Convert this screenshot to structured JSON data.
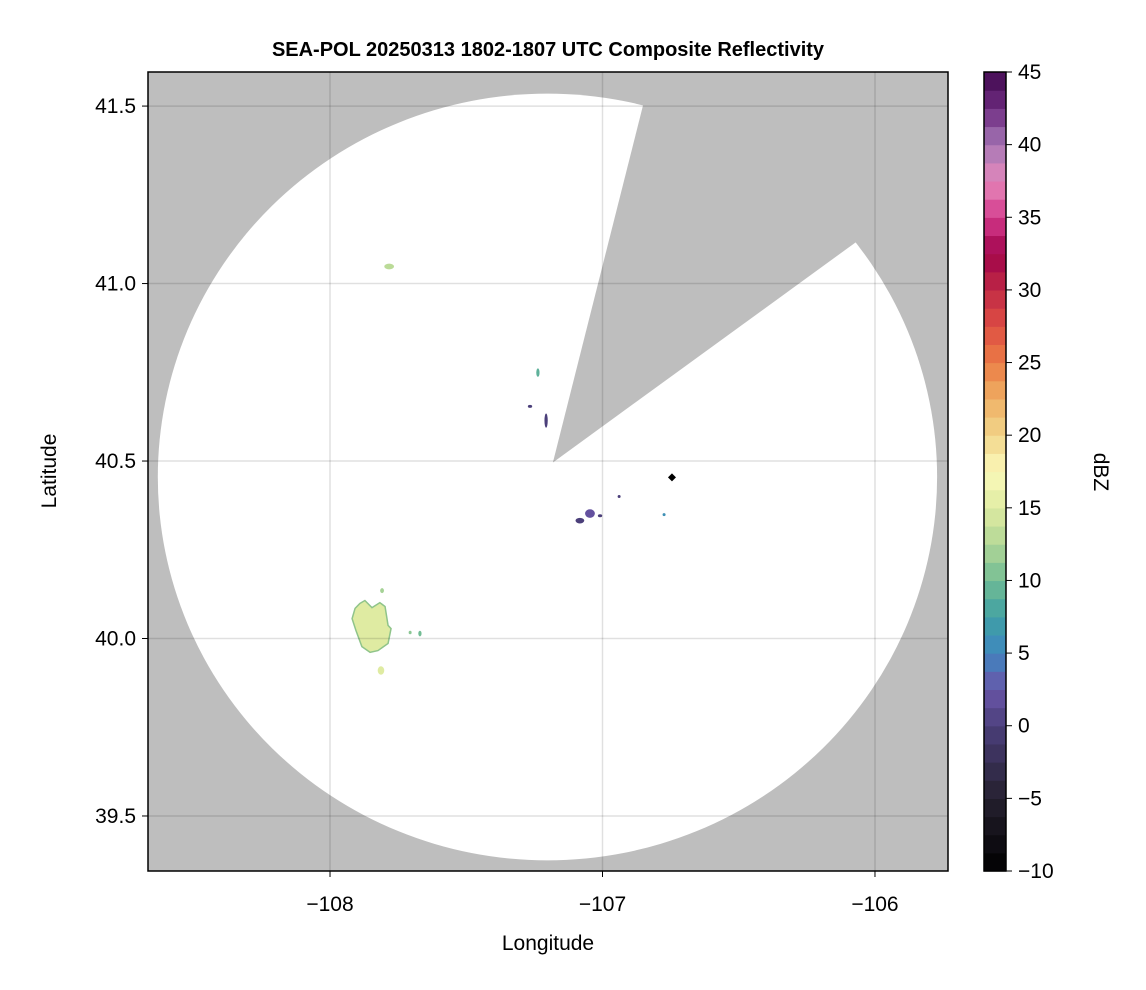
{
  "chart_data": {
    "type": "heatmap",
    "title": "SEA-POL 20250313 1802-1807 UTC Composite Reflectivity",
    "xlabel": "Longitude",
    "ylabel": "Latitude",
    "xlim": [
      -108.668,
      -105.732
    ],
    "ylim": [
      39.345,
      41.596
    ],
    "xticks": [
      -108,
      -107,
      -106
    ],
    "xtick_labels": [
      "−108",
      "−107",
      "−106"
    ],
    "yticks": [
      39.5,
      40.0,
      40.5,
      41.0,
      41.5
    ],
    "ytick_labels": [
      "39.5",
      "40.0",
      "40.5",
      "41.0",
      "41.5"
    ],
    "grid": true,
    "background_color": "#bebebe",
    "coverage_color": "#ffffff",
    "coverage": {
      "center": [
        -107.202,
        40.455
      ],
      "radius_lon": 1.43,
      "radius_lat": 1.08
    },
    "blocked_sector": [
      [
        -107.182,
        40.496
      ],
      [
        -106.844,
        41.524
      ],
      [
        -106.2,
        42.2
      ],
      [
        -106.062,
        41.121
      ]
    ],
    "echoes": [
      {
        "dbz": 15,
        "polygon": [
          [
            -107.89,
            40.099
          ],
          [
            -107.872,
            40.107
          ],
          [
            -107.846,
            40.087
          ],
          [
            -107.817,
            40.101
          ],
          [
            -107.798,
            40.09
          ],
          [
            -107.787,
            40.037
          ],
          [
            -107.776,
            40.028
          ],
          [
            -107.787,
            39.986
          ],
          [
            -107.824,
            39.966
          ],
          [
            -107.853,
            39.961
          ],
          [
            -107.883,
            39.977
          ],
          [
            -107.905,
            40.023
          ],
          [
            -107.919,
            40.056
          ],
          [
            -107.908,
            40.085
          ]
        ]
      },
      {
        "dbz": 13,
        "point": [
          -107.783,
          41.048
        ],
        "size": [
          0.018,
          0.008
        ]
      },
      {
        "dbz": 9,
        "point": [
          -107.237,
          40.749
        ],
        "size": [
          0.006,
          0.012
        ]
      },
      {
        "dbz": 0,
        "point": [
          -107.207,
          40.614
        ],
        "size": [
          0.006,
          0.02
        ]
      },
      {
        "dbz": 0,
        "point": [
          -107.266,
          40.654
        ],
        "size": [
          0.008,
          0.003
        ]
      },
      {
        "dbz": 2,
        "point": [
          -107.046,
          40.352
        ],
        "size": [
          0.018,
          0.012
        ]
      },
      {
        "dbz": 0,
        "point": [
          -107.083,
          40.332
        ],
        "size": [
          0.016,
          0.008
        ]
      },
      {
        "dbz": 0,
        "point": [
          -107.009,
          40.346
        ],
        "size": [
          0.008,
          0.004
        ]
      },
      {
        "dbz": 0,
        "point": [
          -106.939,
          40.4
        ],
        "size": [
          0.005,
          0.004
        ]
      },
      {
        "dbz": 6,
        "point": [
          -106.774,
          40.349
        ],
        "size": [
          0.003,
          0.004
        ]
      },
      {
        "dbz": 15,
        "point": [
          -107.813,
          39.91
        ],
        "size": [
          0.012,
          0.012
        ]
      },
      {
        "dbz": 11,
        "point": [
          -107.706,
          40.017
        ],
        "size": [
          0.005,
          0.005
        ]
      },
      {
        "dbz": 10,
        "point": [
          -107.67,
          40.014
        ],
        "size": [
          0.006,
          0.008
        ]
      },
      {
        "dbz": 12,
        "point": [
          -107.809,
          40.135
        ],
        "size": [
          0.007,
          0.007
        ]
      }
    ],
    "marker": {
      "point": [
        -106.745,
        40.454
      ],
      "color": "#000000",
      "shape": "diamond"
    },
    "colorbar": {
      "label": "dBZ",
      "range": [
        -10,
        45
      ],
      "step": 1.25,
      "ticks": [
        -10,
        -5,
        0,
        5,
        10,
        15,
        20,
        25,
        30,
        35,
        40,
        45
      ],
      "tick_labels": [
        "−10",
        "−5",
        "0",
        "5",
        "10",
        "15",
        "20",
        "25",
        "30",
        "35",
        "40",
        "45"
      ],
      "stops": [
        [
          -10,
          "#000000"
        ],
        [
          -5,
          "#25202f"
        ],
        [
          0,
          "#4b3f7a"
        ],
        [
          2.5,
          "#6a55a8"
        ],
        [
          5,
          "#3f86c0"
        ],
        [
          7.5,
          "#3fa0a4"
        ],
        [
          10,
          "#72bc94"
        ],
        [
          12.5,
          "#b2d796"
        ],
        [
          15,
          "#dfeba2"
        ],
        [
          17.5,
          "#fbf9ba"
        ],
        [
          20,
          "#f2d58a"
        ],
        [
          22.5,
          "#efb064"
        ],
        [
          25,
          "#eb7c45"
        ],
        [
          27.5,
          "#de4e44"
        ],
        [
          30,
          "#c02a45"
        ],
        [
          32.5,
          "#a0034a"
        ],
        [
          35,
          "#d43a8c"
        ],
        [
          37.5,
          "#e588bb"
        ],
        [
          40,
          "#a678b6"
        ],
        [
          42.5,
          "#6e2b80"
        ],
        [
          45,
          "#420a50"
        ]
      ]
    }
  }
}
